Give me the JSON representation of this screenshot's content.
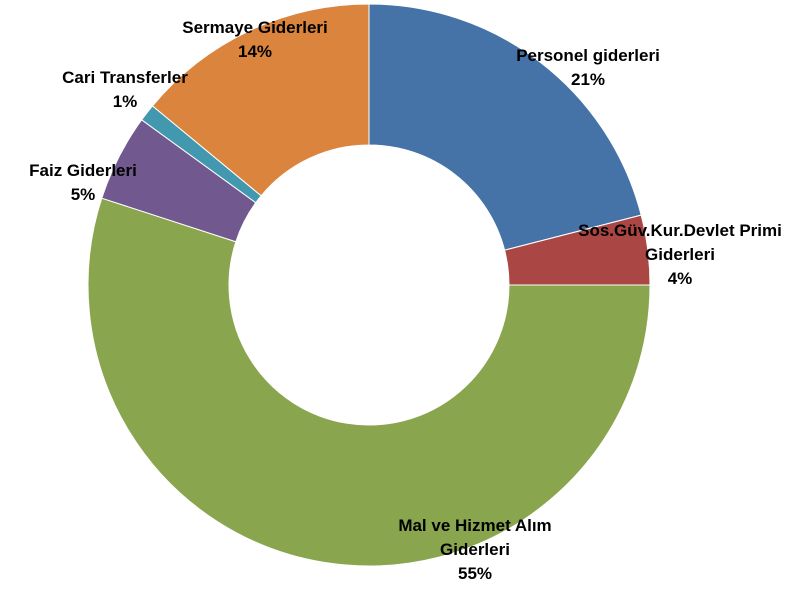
{
  "chart_data": {
    "type": "donut",
    "categories": [
      "Personel giderleri",
      "Sos.Güv.Kur.Devlet Primi Giderleri",
      "Mal ve Hizmet Alım Giderleri",
      "Faiz Giderleri",
      "Cari Transferler",
      "Sermaye Giderleri"
    ],
    "values": [
      21,
      4,
      55,
      5,
      1,
      14
    ],
    "value_labels": [
      "21%",
      "4%",
      "55%",
      "5%",
      "1%",
      "14%"
    ],
    "colors": [
      "#4572a7",
      "#aa4643",
      "#89a54e",
      "#71588f",
      "#4198af",
      "#db843d"
    ]
  }
}
